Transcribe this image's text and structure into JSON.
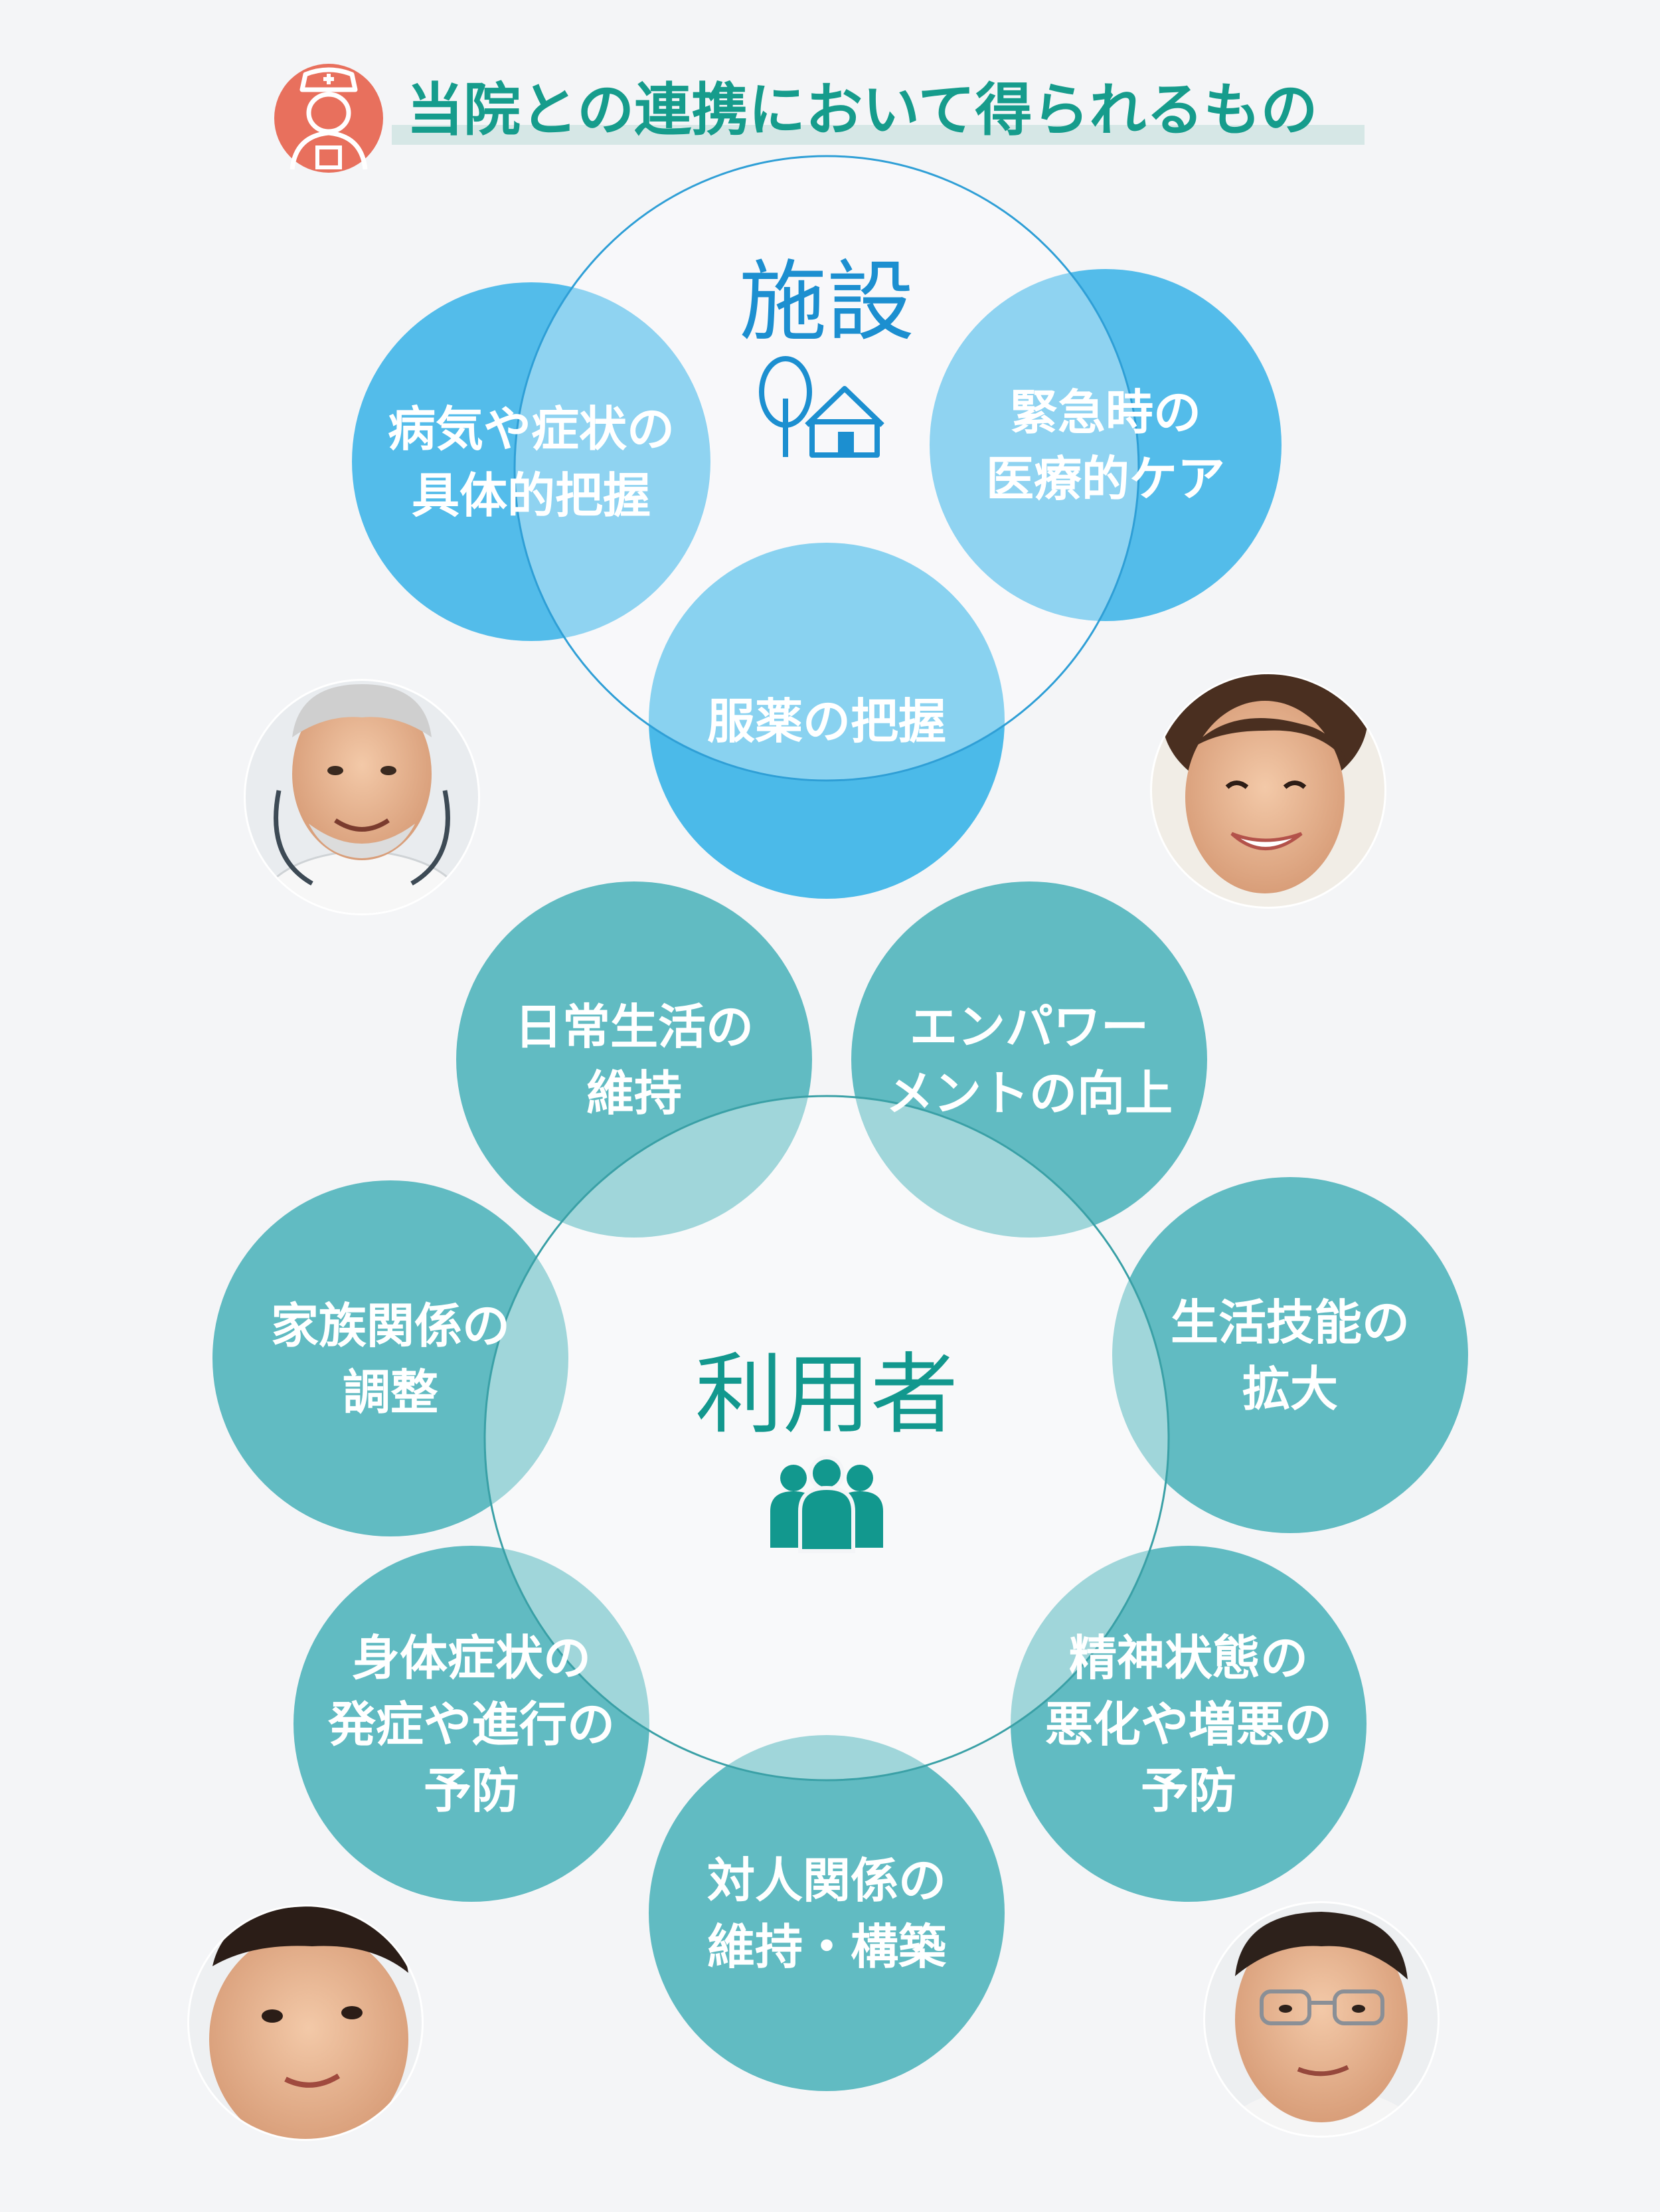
{
  "header": {
    "title": "当院との連携において得られるもの",
    "icon": "nurse-icon"
  },
  "colors": {
    "background": "#f4f5f7",
    "title_green": "#169c8c",
    "title_bar": "#d6e7e6",
    "nurse_circle": "#e8705d",
    "facility_blue": "#2fb0e6",
    "facility_text": "#1c8fd0",
    "user_teal": "#47b0b8",
    "user_text": "#12988e"
  },
  "facility": {
    "label": "施設",
    "icon": "facility-tree-house-icon",
    "items": [
      {
        "lines": [
          "病気や症状の",
          "具体的把握"
        ]
      },
      {
        "lines": [
          "緊急時の",
          "医療的ケア"
        ]
      },
      {
        "lines": [
          "服薬の把握"
        ]
      }
    ]
  },
  "user": {
    "label": "利用者",
    "icon": "group-people-icon",
    "items": [
      {
        "lines": [
          "日常生活の",
          "維持"
        ]
      },
      {
        "lines": [
          "エンパワー",
          "メントの向上"
        ]
      },
      {
        "lines": [
          "家族関係の",
          "調整"
        ]
      },
      {
        "lines": [
          "生活技能の",
          "拡大"
        ]
      },
      {
        "lines": [
          "身体症状の",
          "発症や進行の",
          "予防"
        ]
      },
      {
        "lines": [
          "精神状態の",
          "悪化や増悪の",
          "予防"
        ]
      },
      {
        "lines": [
          "対人関係の",
          "維持・構築"
        ]
      }
    ]
  },
  "photos": [
    {
      "name": "elderly-doctor-photo"
    },
    {
      "name": "smiling-woman-photo"
    },
    {
      "name": "child-photo"
    },
    {
      "name": "man-with-glasses-photo"
    }
  ]
}
